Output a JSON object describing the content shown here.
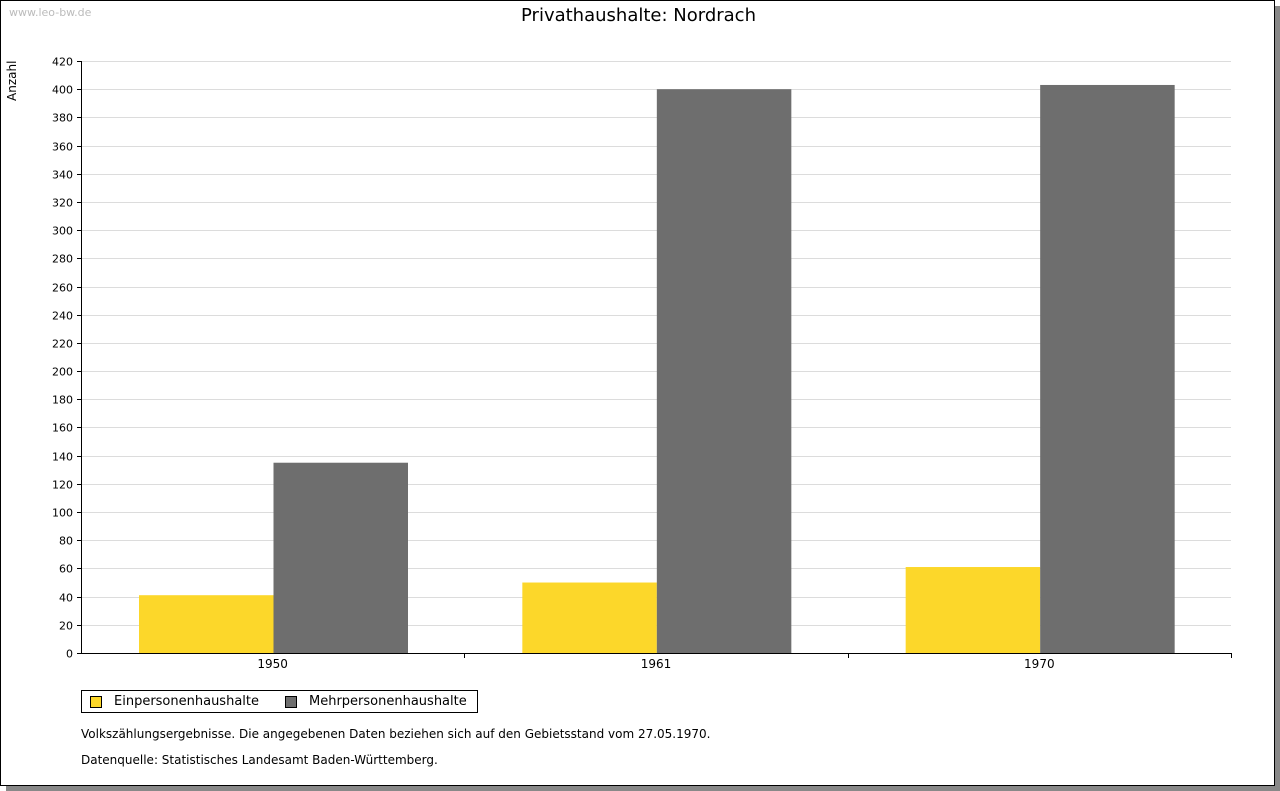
{
  "watermark": "www.leo-bw.de",
  "chart_data": {
    "type": "bar",
    "title": "Privathaushalte: Nordrach",
    "xlabel": "",
    "ylabel": "Anzahl",
    "ylim": [
      0,
      420
    ],
    "ytick_step": 20,
    "categories": [
      "1950",
      "1961",
      "1970"
    ],
    "series": [
      {
        "name": "Einpersonenhaushalte",
        "color": "#fcd72a",
        "values": [
          41,
          50,
          61
        ]
      },
      {
        "name": "Mehrpersonenhaushalte",
        "color": "#6e6e6e",
        "values": [
          135,
          400,
          403
        ]
      }
    ],
    "grid": true,
    "legend": "bottom-left"
  },
  "notes": [
    "Volkszählungsergebnisse. Die angegebenen Daten beziehen sich auf den Gebietsstand vom 27.05.1970.",
    "Datenquelle: Statistisches Landesamt Baden-Württemberg."
  ]
}
